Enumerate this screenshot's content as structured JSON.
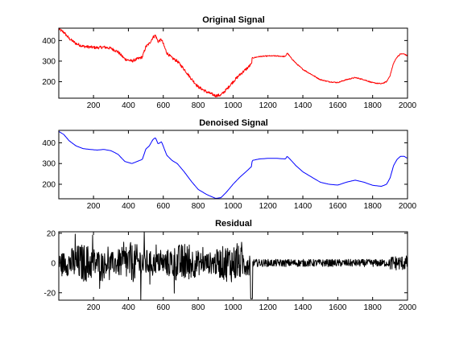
{
  "chart_data": [
    {
      "type": "line",
      "title": "Original Signal",
      "xlim": [
        1,
        2000
      ],
      "ylim": [
        120,
        460
      ],
      "xticks": [
        200,
        400,
        600,
        800,
        1000,
        1200,
        1400,
        1600,
        1800,
        2000
      ],
      "yticks": [
        200,
        300,
        400
      ],
      "color": "#ff0000",
      "noise": "low",
      "series": [
        {
          "x": [
            1,
            30,
            60,
            100,
            140,
            180,
            220,
            260,
            300,
            340,
            380,
            420,
            450,
            480,
            500,
            520,
            540,
            555,
            570,
            590,
            620,
            650,
            680,
            720,
            760,
            800,
            850,
            900,
            930,
            960,
            1000,
            1040,
            1080,
            1105,
            1110,
            1150,
            1200,
            1250,
            1300,
            1310,
            1330,
            1360,
            1400,
            1450,
            1500,
            1550,
            1600,
            1650,
            1700,
            1750,
            1800,
            1850,
            1880,
            1900,
            1920,
            1940,
            1960,
            1980,
            2000
          ],
          "y": [
            455,
            440,
            410,
            385,
            372,
            368,
            365,
            368,
            362,
            345,
            310,
            300,
            310,
            320,
            370,
            385,
            415,
            425,
            395,
            405,
            340,
            315,
            300,
            260,
            215,
            175,
            150,
            132,
            135,
            160,
            200,
            235,
            265,
            285,
            315,
            322,
            325,
            325,
            322,
            340,
            318,
            290,
            260,
            235,
            210,
            200,
            196,
            210,
            220,
            210,
            195,
            190,
            200,
            230,
            290,
            320,
            335,
            335,
            325
          ]
        }
      ]
    },
    {
      "type": "line",
      "title": "Denoised Signal",
      "xlim": [
        1,
        2000
      ],
      "ylim": [
        130,
        460
      ],
      "xticks": [
        200,
        400,
        600,
        800,
        1000,
        1200,
        1400,
        1600,
        1800,
        2000
      ],
      "yticks": [
        200,
        300,
        400
      ],
      "color": "#0000ff",
      "noise": "none",
      "series": [
        {
          "x": [
            1,
            30,
            60,
            100,
            140,
            180,
            220,
            260,
            300,
            340,
            380,
            420,
            450,
            480,
            500,
            520,
            540,
            555,
            570,
            590,
            620,
            650,
            680,
            720,
            760,
            800,
            850,
            900,
            930,
            960,
            1000,
            1040,
            1080,
            1105,
            1110,
            1150,
            1200,
            1250,
            1300,
            1310,
            1330,
            1360,
            1400,
            1450,
            1500,
            1550,
            1600,
            1650,
            1700,
            1750,
            1800,
            1850,
            1880,
            1900,
            1920,
            1940,
            1960,
            1980,
            2000
          ],
          "y": [
            455,
            440,
            410,
            385,
            372,
            368,
            365,
            368,
            362,
            345,
            310,
            300,
            310,
            320,
            370,
            385,
            415,
            425,
            395,
            405,
            340,
            315,
            300,
            260,
            215,
            175,
            150,
            132,
            135,
            160,
            200,
            235,
            265,
            285,
            315,
            322,
            325,
            325,
            322,
            335,
            318,
            290,
            260,
            235,
            210,
            200,
            196,
            210,
            220,
            210,
            195,
            190,
            200,
            230,
            290,
            320,
            335,
            335,
            325
          ]
        }
      ]
    },
    {
      "type": "line",
      "title": "Residual",
      "xlim": [
        1,
        2000
      ],
      "ylim": [
        -25,
        21
      ],
      "xticks": [
        200,
        400,
        600,
        800,
        1000,
        1200,
        1400,
        1600,
        1800,
        2000
      ],
      "yticks": [
        -20,
        0,
        20
      ],
      "color": "#000000",
      "noise": "residual",
      "series": [
        {
          "x": [
            1,
            2000
          ],
          "y": [
            0,
            0
          ]
        }
      ]
    }
  ]
}
